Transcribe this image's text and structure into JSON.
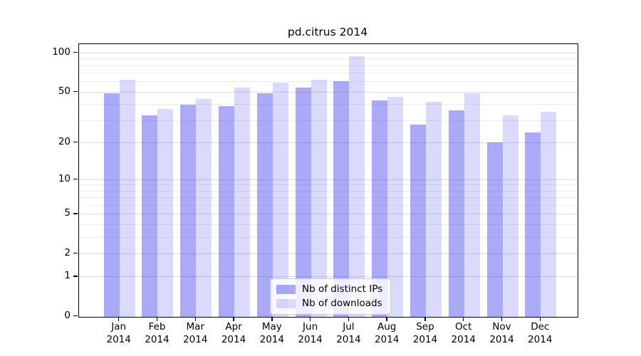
{
  "title": "pd.citrus 2014",
  "colors": {
    "distinct_ips_bar": "rgba(10,10,235,0.345)",
    "downloads_bar": "rgba(10,10,235,0.15)",
    "major_gridline": "#dcdcdc",
    "minor_gridline": "#f0f0f0",
    "axis_spine": "#000000",
    "background": "#ffffff"
  },
  "legend": {
    "items": [
      {
        "label": "Nb of distinct IPs"
      },
      {
        "label": "Nb of downloads"
      }
    ]
  },
  "axis": {
    "y_ticks": [
      {
        "label": "100",
        "value": 100
      },
      {
        "label": "50",
        "value": 50
      },
      {
        "label": "20",
        "value": 20
      },
      {
        "label": "10",
        "value": 10
      },
      {
        "label": "5",
        "value": 5
      },
      {
        "label": "2",
        "value": 2
      },
      {
        "label": "1",
        "value": 1
      },
      {
        "label": "0",
        "value": 0
      }
    ],
    "major_gridlines": [
      1,
      2,
      5,
      10,
      20,
      50,
      100
    ],
    "minor_gridlines": [
      3,
      4,
      6,
      7,
      8,
      9,
      30,
      40,
      60,
      70,
      80,
      90
    ],
    "x_labels": [
      {
        "month": "Jan",
        "year": "2014"
      },
      {
        "month": "Feb",
        "year": "2014"
      },
      {
        "month": "Mar",
        "year": "2014"
      },
      {
        "month": "Apr",
        "year": "2014"
      },
      {
        "month": "May",
        "year": "2014"
      },
      {
        "month": "Jun",
        "year": "2014"
      },
      {
        "month": "Jul",
        "year": "2014"
      },
      {
        "month": "Aug",
        "year": "2014"
      },
      {
        "month": "Sep",
        "year": "2014"
      },
      {
        "month": "Oct",
        "year": "2014"
      },
      {
        "month": "Nov",
        "year": "2014"
      },
      {
        "month": "Dec",
        "year": "2014"
      }
    ]
  },
  "chart_data": {
    "type": "bar",
    "title": "pd.citrus 2014",
    "categories": [
      "Jan 2014",
      "Feb 2014",
      "Mar 2014",
      "Apr 2014",
      "May 2014",
      "Jun 2014",
      "Jul 2014",
      "Aug 2014",
      "Sep 2014",
      "Oct 2014",
      "Nov 2014",
      "Dec 2014"
    ],
    "series": [
      {
        "name": "Nb of distinct IPs",
        "values": [
          49,
          33,
          40,
          39,
          49,
          54,
          61,
          43,
          28,
          36,
          20,
          24
        ]
      },
      {
        "name": "Nb of downloads",
        "values": [
          62,
          37,
          44,
          54,
          59,
          62,
          95,
          46,
          42,
          49,
          33,
          35
        ]
      }
    ],
    "xlabel": "",
    "ylabel": "",
    "yscale": "log1p",
    "y_tick_values": [
      100,
      50,
      20,
      10,
      5,
      2,
      1,
      0
    ],
    "ylim": [
      0,
      117
    ],
    "grid": "horizontal, log minor + major",
    "legend_position": "lower center (inside plot)"
  }
}
